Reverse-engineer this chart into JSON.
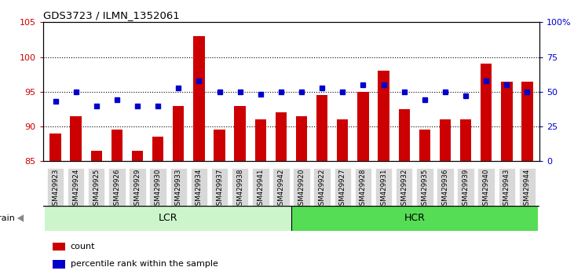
{
  "title": "GDS3723 / ILMN_1352061",
  "samples": [
    "GSM429923",
    "GSM429924",
    "GSM429925",
    "GSM429926",
    "GSM429929",
    "GSM429930",
    "GSM429933",
    "GSM429934",
    "GSM429937",
    "GSM429938",
    "GSM429941",
    "GSM429942",
    "GSM429920",
    "GSM429922",
    "GSM429927",
    "GSM429928",
    "GSM429931",
    "GSM429932",
    "GSM429935",
    "GSM429936",
    "GSM429939",
    "GSM429940",
    "GSM429943",
    "GSM429944"
  ],
  "bar_values": [
    89.0,
    91.5,
    86.5,
    89.5,
    86.5,
    88.5,
    93.0,
    103.0,
    89.5,
    93.0,
    91.0,
    92.0,
    91.5,
    94.5,
    91.0,
    95.0,
    98.0,
    92.5,
    89.5,
    91.0,
    91.0,
    99.0,
    96.5,
    96.5
  ],
  "dot_pct_vals": [
    43,
    50,
    40,
    44,
    40,
    40,
    53,
    58,
    50,
    50,
    48,
    50,
    50,
    53,
    50,
    55,
    55,
    50,
    44,
    50,
    47,
    58,
    55,
    50
  ],
  "lcr_count": 12,
  "hcr_count": 12,
  "bar_color": "#cc0000",
  "dot_color": "#0000cc",
  "ylim_left": [
    85,
    105
  ],
  "ylim_right": [
    0,
    100
  ],
  "yticks_left": [
    85,
    90,
    95,
    100,
    105
  ],
  "yticks_right": [
    0,
    25,
    50,
    75,
    100
  ],
  "ytick_labels_right": [
    "0",
    "25",
    "50",
    "75",
    "100%"
  ],
  "grid_vals": [
    90,
    95,
    100
  ],
  "plot_bg": "#ffffff",
  "fig_bg": "#ffffff",
  "lcr_color": "#ccf5cc",
  "hcr_color": "#55dd55",
  "tick_bg": "#d8d8d8",
  "strain_label": "strain",
  "lcr_label": "LCR",
  "hcr_label": "HCR",
  "legend_count": "count",
  "legend_pct": "percentile rank within the sample"
}
